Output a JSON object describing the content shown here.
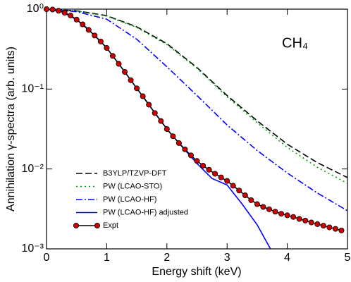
{
  "chart_data": {
    "type": "line",
    "annotation": "CH₄",
    "xlabel": "Energy shift (keV)",
    "ylabel": "Annihilation γ-spectra (arb. units)",
    "xlim": [
      0,
      5
    ],
    "ylim": [
      0.001,
      1
    ],
    "yscale": "log",
    "xticks": [
      0,
      1,
      2,
      3,
      4,
      5
    ],
    "yticks": [
      {
        "value": 0.001,
        "label": "10⁻³"
      },
      {
        "value": 0.01,
        "label": "10⁻²"
      },
      {
        "value": 0.1,
        "label": "10⁻¹"
      },
      {
        "value": 1,
        "label": "10⁰"
      }
    ],
    "legend": "lower left",
    "series": [
      {
        "name": "B3YLP/TZVP-DFT",
        "color": "#000000",
        "dash": "9,4",
        "x": [
          0,
          0.5,
          1,
          1.5,
          2,
          2.5,
          3,
          3.5,
          4,
          4.5,
          5
        ],
        "values": [
          1,
          0.955,
          0.83,
          0.6,
          0.37,
          0.186,
          0.083,
          0.04,
          0.0204,
          0.012,
          0.0078
        ]
      },
      {
        "name": "PW (LCAO-STO)",
        "color": "#00a000",
        "dash": "2,4",
        "x": [
          0,
          0.5,
          1,
          1.5,
          2,
          2.5,
          3,
          3.5,
          4,
          4.5,
          5
        ],
        "values": [
          1,
          0.95,
          0.82,
          0.59,
          0.36,
          0.182,
          0.08,
          0.038,
          0.0186,
          0.0105,
          0.0066
        ]
      },
      {
        "name": "PW (LCAO-HF)",
        "color": "#0000ff",
        "dash": "9,3,2,3",
        "x": [
          0,
          0.5,
          1,
          1.5,
          2,
          2.5,
          3,
          3.5,
          4,
          4.5,
          5
        ],
        "values": [
          1,
          0.93,
          0.75,
          0.42,
          0.19,
          0.083,
          0.0355,
          0.017,
          0.0089,
          0.005,
          0.003
        ]
      },
      {
        "name": "PW (LCAO-HF) adjusted",
        "color": "#0000ff",
        "dash": "none",
        "x": [
          0,
          0.25,
          0.5,
          0.75,
          1,
          1.25,
          1.5,
          1.75,
          2,
          2.25,
          2.5,
          2.75,
          3,
          3.25,
          3.5,
          3.72
        ],
        "values": [
          1,
          0.929,
          0.741,
          0.507,
          0.327,
          0.184,
          0.102,
          0.0569,
          0.0316,
          0.0191,
          0.0117,
          0.00759,
          0.0063,
          0.00363,
          0.002,
          0.001
        ]
      },
      {
        "name": "Expt",
        "color": "#000000",
        "marker_color": "#cc0000",
        "dash": "none",
        "x": [
          0,
          0.1,
          0.2,
          0.3,
          0.4,
          0.5,
          0.6,
          0.7,
          0.8,
          0.9,
          1,
          1.1,
          1.2,
          1.3,
          1.4,
          1.5,
          1.6,
          1.7,
          1.8,
          1.9,
          2,
          2.1,
          2.2,
          2.3,
          2.4,
          2.5,
          2.6,
          2.7,
          2.8,
          2.9,
          3,
          3.1,
          3.2,
          3.3,
          3.4,
          3.5,
          3.6,
          3.7,
          3.8,
          3.9,
          4,
          4.1,
          4.2,
          4.3,
          4.4,
          4.5,
          4.6,
          4.7,
          4.8,
          4.9
        ],
        "values": [
          1,
          0.989,
          0.955,
          0.902,
          0.832,
          0.741,
          0.646,
          0.55,
          0.468,
          0.394,
          0.327,
          0.26,
          0.207,
          0.164,
          0.129,
          0.102,
          0.0813,
          0.0638,
          0.0501,
          0.0398,
          0.0316,
          0.0257,
          0.0211,
          0.0176,
          0.0148,
          0.0126,
          0.011,
          0.00977,
          0.00871,
          0.00785,
          0.00708,
          0.00617,
          0.00537,
          0.00468,
          0.00407,
          0.00363,
          0.00335,
          0.00313,
          0.00292,
          0.00275,
          0.00263,
          0.00251,
          0.00237,
          0.00226,
          0.00214,
          0.00204,
          0.00195,
          0.00186,
          0.00178,
          0.0017
        ]
      }
    ]
  }
}
